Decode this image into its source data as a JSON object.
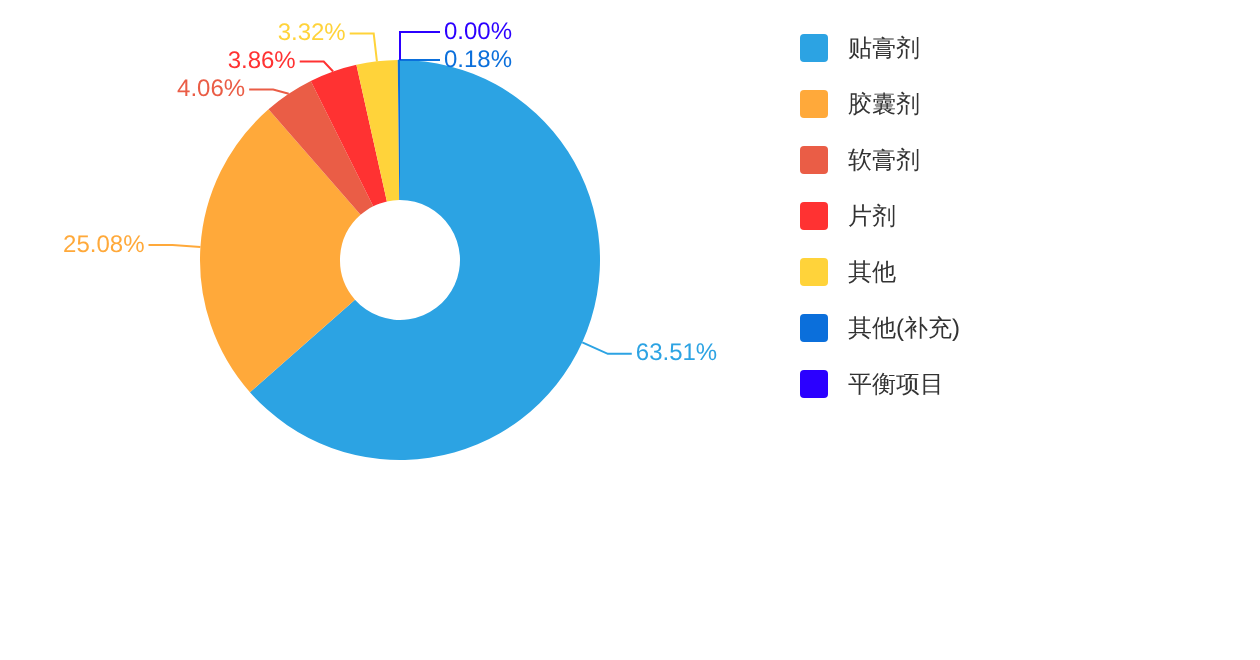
{
  "chart_data": {
    "type": "donut",
    "categories": [
      "贴膏剂",
      "胶囊剂",
      "软膏剂",
      "片剂",
      "其他",
      "其他(补充)",
      "平衡项目"
    ],
    "values": [
      63.51,
      25.08,
      4.06,
      3.86,
      3.32,
      0.18,
      0.0
    ],
    "colors": [
      "#2ca3e3",
      "#ffa93a",
      "#ea5d46",
      "#ff3232",
      "#ffd33a",
      "#0b6fdb",
      "#2b00ff"
    ],
    "value_labels": [
      "63.51%",
      "25.08%",
      "4.06%",
      "3.86%",
      "3.32%",
      "0.18%",
      "0.00%"
    ],
    "legend": "right"
  }
}
